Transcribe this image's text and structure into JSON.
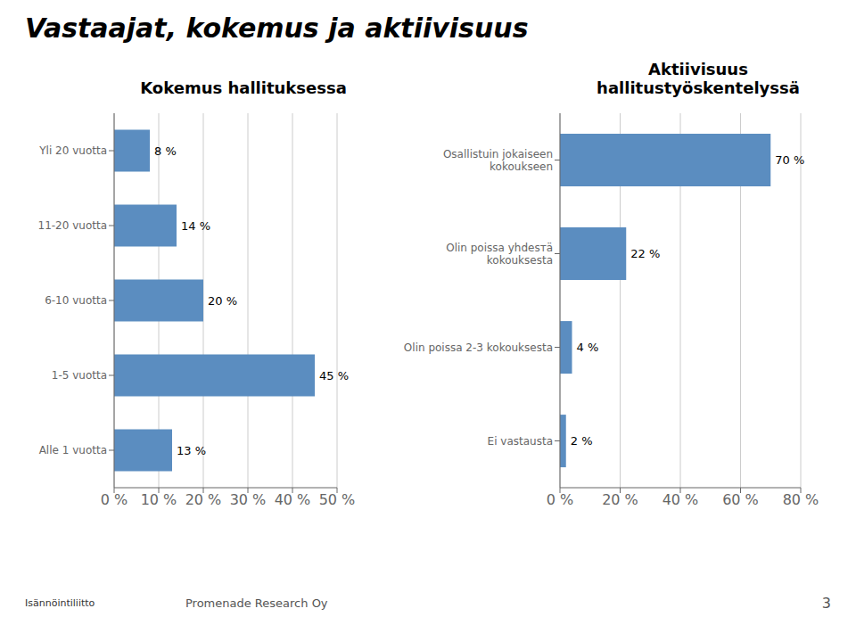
{
  "title": "Vastaajat, kokemus ja aktiivisuus",
  "annotations": [
    "Isännöintiliitto",
    "Promenade Research Oy",
    "3"
  ],
  "chart_data": [
    {
      "type": "bar",
      "orientation": "horizontal",
      "title": "Kokemus hallituksessa",
      "categories": [
        "Yli 20 vuotta",
        "11-20 vuotta",
        "6-10 vuotta",
        "1-5 vuotta",
        "Alle 1 vuotta"
      ],
      "values": [
        8,
        14,
        20,
        45,
        13
      ],
      "value_labels": [
        "8 %",
        "14 %",
        "20 %",
        "45 %",
        "13 %"
      ],
      "data_labels": true,
      "color": "#5b8dc0",
      "xlim": [
        0,
        50
      ],
      "xticks": [
        {
          "value": 0,
          "label": "0 %"
        },
        {
          "value": 10,
          "label": "10 %"
        },
        {
          "value": 20,
          "label": "20 %"
        },
        {
          "value": 30,
          "label": "30 %"
        },
        {
          "value": 40,
          "label": "40 %"
        },
        {
          "value": 50,
          "label": "50 %"
        }
      ],
      "grid": true
    },
    {
      "type": "bar",
      "orientation": "horizontal",
      "title": "Aktiivisuus\nhallitustyöskentelyssä",
      "categories": [
        "Osallistuin jokaiseen\nkokoukseen",
        "Olin poissa yhdesтä\nkokouksesta",
        "Olin poissa 2-3 kokouksesta",
        "Ei vastausta"
      ],
      "values": [
        70,
        22,
        4,
        2
      ],
      "value_labels": [
        "70 %",
        "22 %",
        "4 %",
        "2 %"
      ],
      "data_labels": true,
      "color": "#5b8dc0",
      "xlim": [
        0,
        80
      ],
      "xticks": [
        {
          "value": 0,
          "label": "0 %"
        },
        {
          "value": 20,
          "label": "20 %"
        },
        {
          "value": 40,
          "label": "40 %"
        },
        {
          "value": 60,
          "label": "60 %"
        },
        {
          "value": 80,
          "label": "80 %"
        }
      ],
      "grid": true
    }
  ]
}
